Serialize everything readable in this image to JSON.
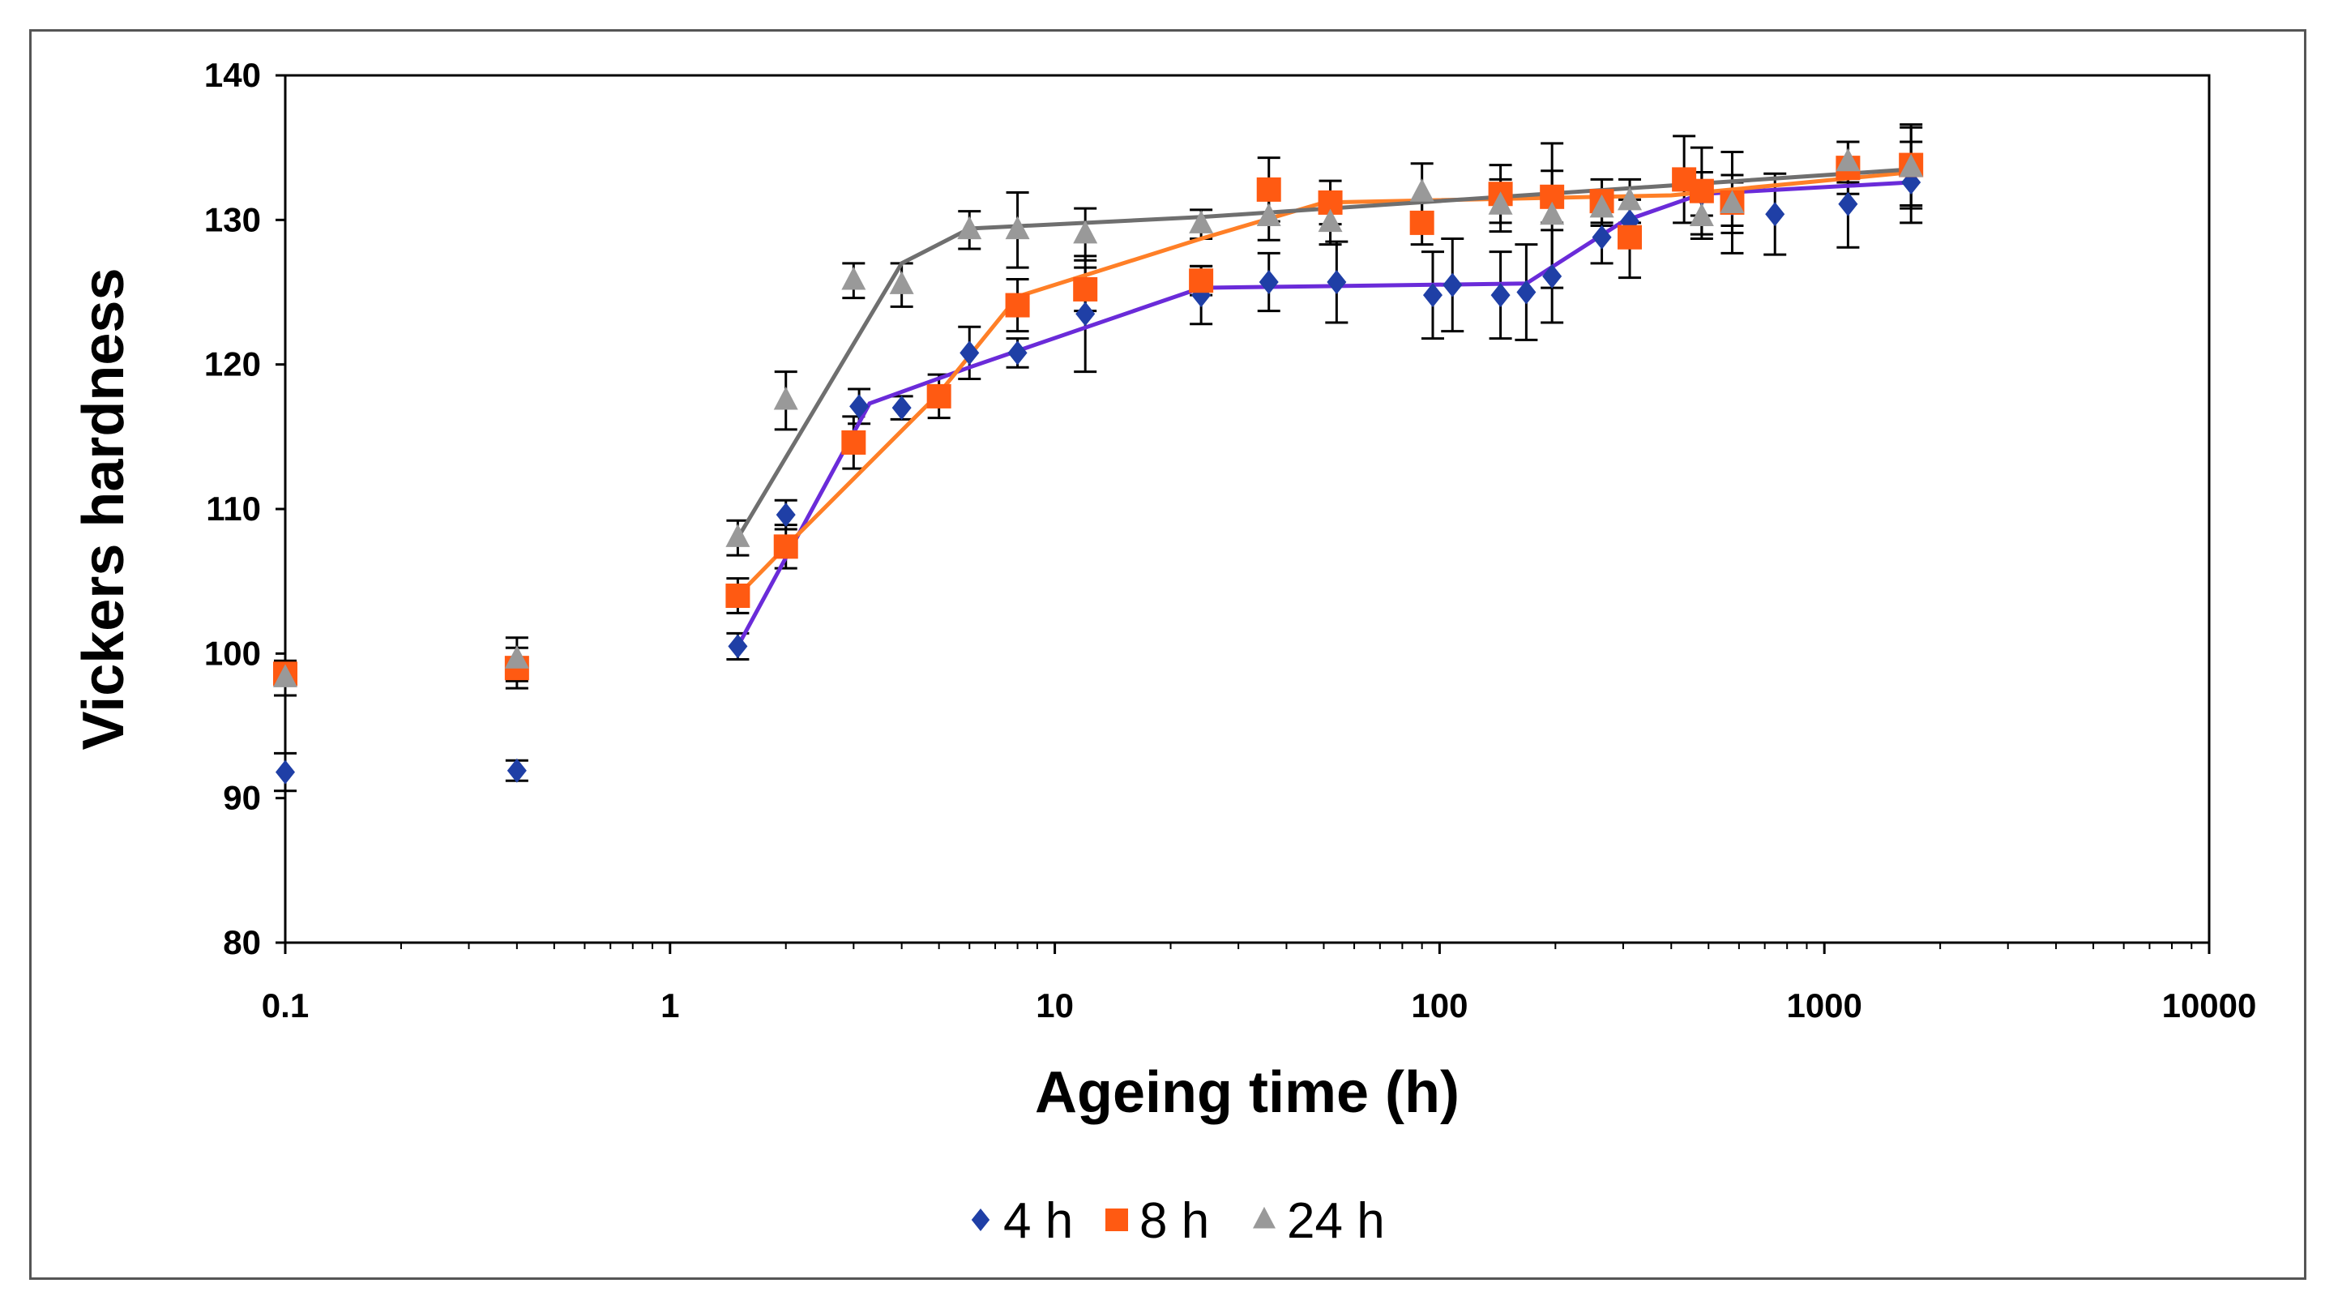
{
  "chart_data": {
    "type": "scatter",
    "xlabel": "Ageing time (h)",
    "ylabel": "Vickers hardness",
    "xscale": "log",
    "xlim": [
      0.1,
      10000
    ],
    "ylim": [
      80,
      140
    ],
    "xticks": [
      "0.1",
      "1",
      "10",
      "100",
      "1000",
      "10000"
    ],
    "yticks": [
      "80",
      "90",
      "100",
      "110",
      "120",
      "130",
      "140"
    ],
    "legend_position": "bottom-center",
    "series": [
      {
        "name": "4 h",
        "color": "#1F3FA6",
        "line_color": "#6A2BD9",
        "marker": "diamond",
        "points": [
          {
            "x": 0.1,
            "y": 91.8,
            "err": 1.3
          },
          {
            "x": 0.4,
            "y": 91.9,
            "err": 0.7
          },
          {
            "x": 1.5,
            "y": 100.5,
            "err": 0.9
          },
          {
            "x": 2.0,
            "y": 109.6,
            "err": 1.0
          },
          {
            "x": 3.1,
            "y": 117.1,
            "err": 1.2
          },
          {
            "x": 4.0,
            "y": 117.0,
            "err": 0.8
          },
          {
            "x": 6.0,
            "y": 120.8,
            "err": 1.8
          },
          {
            "x": 8.0,
            "y": 120.8,
            "err": 1.0
          },
          {
            "x": 12.0,
            "y": 123.5,
            "err": 4.0
          },
          {
            "x": 24.0,
            "y": 124.8,
            "err": 2.0
          },
          {
            "x": 36.0,
            "y": 125.7,
            "err": 2.0
          },
          {
            "x": 54.0,
            "y": 125.7,
            "err": 2.8
          },
          {
            "x": 96.0,
            "y": 124.8,
            "err": 3.0
          },
          {
            "x": 108.0,
            "y": 125.5,
            "err": 3.2
          },
          {
            "x": 144.0,
            "y": 124.8,
            "err": 3.0
          },
          {
            "x": 168.0,
            "y": 125.0,
            "err": 3.3
          },
          {
            "x": 196.0,
            "y": 126.1,
            "err": 3.2
          },
          {
            "x": 264.0,
            "y": 128.8,
            "err": 1.8
          },
          {
            "x": 312.0,
            "y": 129.9,
            "err": 1.5
          },
          {
            "x": 480.0,
            "y": 131.8,
            "err": 1.5
          },
          {
            "x": 576.0,
            "y": 131.1,
            "err": 2.0
          },
          {
            "x": 744.0,
            "y": 130.4,
            "err": 2.8
          },
          {
            "x": 1152.0,
            "y": 131.1,
            "err": 3.0
          },
          {
            "x": 1680.0,
            "y": 132.6,
            "err": 2.8
          }
        ],
        "trend": [
          {
            "x": 1.5,
            "y": 100.5
          },
          {
            "x": 3.3,
            "y": 117.3
          },
          {
            "x": 6.0,
            "y": 119.8
          },
          {
            "x": 24.0,
            "y": 125.3
          },
          {
            "x": 168.0,
            "y": 125.6
          },
          {
            "x": 300.0,
            "y": 129.9
          },
          {
            "x": 480.0,
            "y": 131.8
          },
          {
            "x": 1680.0,
            "y": 132.6
          }
        ]
      },
      {
        "name": "8 h",
        "color": "#FF5A12",
        "line_color": "#FF7F27",
        "marker": "square",
        "points": [
          {
            "x": 0.1,
            "y": 98.6,
            "err": 0.0
          },
          {
            "x": 0.4,
            "y": 99.0,
            "err": 1.4
          },
          {
            "x": 1.5,
            "y": 104.0,
            "err": 1.2
          },
          {
            "x": 2.0,
            "y": 107.4,
            "err": 1.5
          },
          {
            "x": 3.0,
            "y": 114.6,
            "err": 1.8
          },
          {
            "x": 5.0,
            "y": 117.8,
            "err": 1.5
          },
          {
            "x": 8.0,
            "y": 124.1,
            "err": 1.8
          },
          {
            "x": 12.0,
            "y": 125.2,
            "err": 1.5
          },
          {
            "x": 24.0,
            "y": 125.8,
            "err": 1.0
          },
          {
            "x": 36.0,
            "y": 132.1,
            "err": 2.2
          },
          {
            "x": 52.0,
            "y": 131.2,
            "err": 1.5
          },
          {
            "x": 90.0,
            "y": 129.8,
            "err": 1.5
          },
          {
            "x": 144.0,
            "y": 131.8,
            "err": 2.0
          },
          {
            "x": 196.0,
            "y": 131.6,
            "err": 1.8
          },
          {
            "x": 264.0,
            "y": 131.3,
            "err": 1.5
          },
          {
            "x": 312.0,
            "y": 128.8,
            "err": 2.8
          },
          {
            "x": 432.0,
            "y": 132.8,
            "err": 3.0
          },
          {
            "x": 480.0,
            "y": 132.0,
            "err": 3.0
          },
          {
            "x": 576.0,
            "y": 131.2,
            "err": 3.5
          },
          {
            "x": 1152.0,
            "y": 133.6,
            "err": 1.8
          },
          {
            "x": 1680.0,
            "y": 133.8,
            "err": 2.8
          }
        ],
        "trend": [
          {
            "x": 1.5,
            "y": 104.0
          },
          {
            "x": 2.0,
            "y": 107.4
          },
          {
            "x": 5.0,
            "y": 118.0
          },
          {
            "x": 8.0,
            "y": 124.7
          },
          {
            "x": 24.0,
            "y": 128.7
          },
          {
            "x": 50.0,
            "y": 131.2
          },
          {
            "x": 400.0,
            "y": 131.7
          },
          {
            "x": 1680.0,
            "y": 133.3
          }
        ]
      },
      {
        "name": "24 h",
        "color": "#999999",
        "line_color": "#6F6F6F",
        "marker": "triangle",
        "points": [
          {
            "x": 0.1,
            "y": 98.3,
            "err": 1.2
          },
          {
            "x": 0.4,
            "y": 99.6,
            "err": 1.5
          },
          {
            "x": 1.5,
            "y": 108.0,
            "err": 1.2
          },
          {
            "x": 2.0,
            "y": 117.5,
            "err": 2.0
          },
          {
            "x": 3.0,
            "y": 125.8,
            "err": 1.2
          },
          {
            "x": 4.0,
            "y": 125.5,
            "err": 1.5
          },
          {
            "x": 6.0,
            "y": 129.3,
            "err": 1.3
          },
          {
            "x": 8.0,
            "y": 129.3,
            "err": 2.6
          },
          {
            "x": 12.0,
            "y": 129.0,
            "err": 1.8
          },
          {
            "x": 24.0,
            "y": 129.7,
            "err": 1.0
          },
          {
            "x": 36.0,
            "y": 130.2,
            "err": 1.6
          },
          {
            "x": 52.0,
            "y": 129.8,
            "err": 1.5
          },
          {
            "x": 90.0,
            "y": 131.9,
            "err": 2.0
          },
          {
            "x": 144.0,
            "y": 131.0,
            "err": 1.8
          },
          {
            "x": 196.0,
            "y": 130.3,
            "err": 5.0
          },
          {
            "x": 264.0,
            "y": 130.8,
            "err": 1.2
          },
          {
            "x": 312.0,
            "y": 131.3,
            "err": 1.5
          },
          {
            "x": 480.0,
            "y": 130.2,
            "err": 1.5
          },
          {
            "x": 576.0,
            "y": 131.1,
            "err": 1.5
          },
          {
            "x": 1152.0,
            "y": 134.0,
            "err": 1.4
          },
          {
            "x": 1680.0,
            "y": 133.6,
            "err": 2.8
          }
        ],
        "trend": [
          {
            "x": 1.5,
            "y": 108.0
          },
          {
            "x": 4.0,
            "y": 127.0
          },
          {
            "x": 6.0,
            "y": 129.4
          },
          {
            "x": 24.0,
            "y": 130.2
          },
          {
            "x": 1680.0,
            "y": 133.5
          }
        ]
      }
    ]
  }
}
